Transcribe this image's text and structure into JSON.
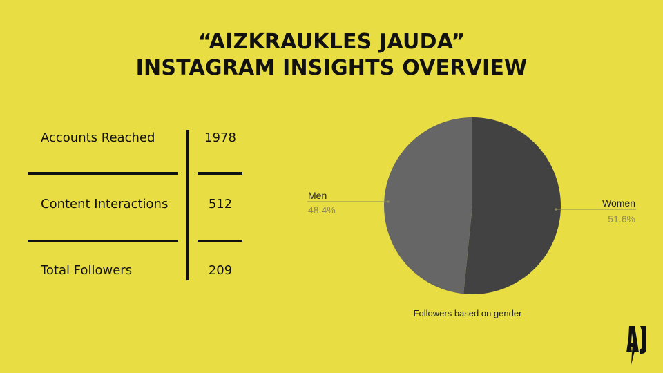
{
  "title": {
    "line1": "“AIZKRAUKLES JAUDA”",
    "line2": "INSTAGRAM INSIGHTS OVERVIEW"
  },
  "stats": [
    {
      "label": "Accounts Reached",
      "value": "1978"
    },
    {
      "label": "Content Interactions",
      "value": "512"
    },
    {
      "label": "Total Followers",
      "value": "209"
    }
  ],
  "chart_data": {
    "type": "pie",
    "title": "Followers based on gender",
    "slices": [
      {
        "label": "Women",
        "value": 51.6,
        "display": "51.6%",
        "color": "#424242"
      },
      {
        "label": "Men",
        "value": 48.4,
        "display": "48.4%",
        "color": "#666666"
      }
    ],
    "legend": "labels-outside"
  },
  "logo": {
    "text": "AJ",
    "color": "#111111"
  },
  "colors": {
    "background": "#e9dd44",
    "line": "#111111",
    "label_value": "#8a8a5a"
  }
}
